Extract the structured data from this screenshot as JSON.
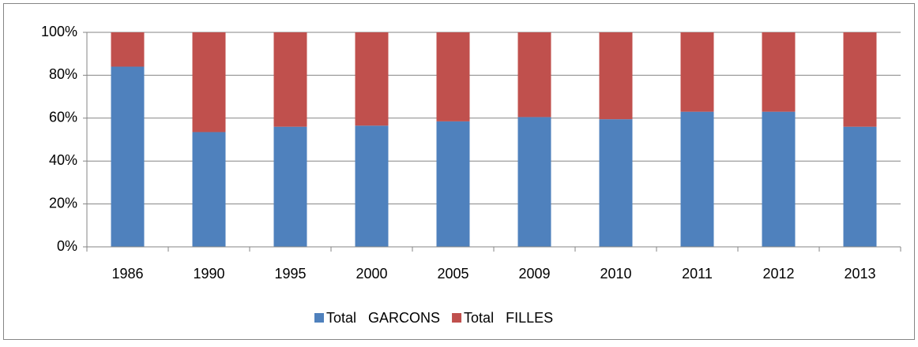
{
  "chart_data": {
    "type": "stacked_bar",
    "categories": [
      "1986",
      "1990",
      "1995",
      "2000",
      "2005",
      "2009",
      "2010",
      "2011",
      "2012",
      "2013"
    ],
    "series": [
      {
        "name": "Total   GARCONS",
        "color": "#4f81bd",
        "values": [
          84,
          53.5,
          56,
          56.5,
          58.5,
          60.5,
          59.5,
          63,
          63,
          56
        ]
      },
      {
        "name": "Total   FILLES",
        "color": "#c0504d",
        "values": [
          16,
          46.5,
          44,
          43.5,
          41.5,
          39.5,
          40.5,
          37,
          37,
          44
        ]
      }
    ],
    "ylim": [
      0,
      100
    ],
    "yticks": [
      {
        "value": 0,
        "label": "0%"
      },
      {
        "value": 20,
        "label": "20%"
      },
      {
        "value": 40,
        "label": "40%"
      },
      {
        "value": 60,
        "label": "60%"
      },
      {
        "value": 80,
        "label": "80%"
      },
      {
        "value": 100,
        "label": "100%"
      }
    ],
    "grid": true,
    "legend": "bottom"
  }
}
